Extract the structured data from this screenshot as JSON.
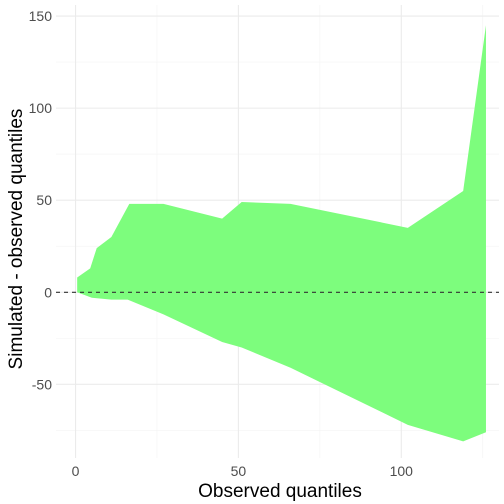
{
  "chart_data": {
    "type": "area",
    "title": "",
    "xlabel": "Observed quantiles",
    "ylabel": "Simulated - observed quantiles",
    "xlim": [
      -6,
      130
    ],
    "ylim": [
      -90,
      156
    ],
    "x_ticks": [
      0,
      50,
      100
    ],
    "x_tick_labels": [
      "0",
      "50",
      "100"
    ],
    "y_ticks": [
      -50,
      0,
      50,
      100,
      150
    ],
    "y_tick_labels": [
      "-50",
      "0",
      "50",
      "100",
      "150"
    ],
    "grid": true,
    "legend": "none",
    "band": {
      "upper": [
        [
          0.5,
          8
        ],
        [
          4.5,
          13
        ],
        [
          6.5,
          24
        ],
        [
          11,
          30
        ],
        [
          16.5,
          48
        ],
        [
          27,
          48
        ],
        [
          45,
          40
        ],
        [
          51,
          49
        ],
        [
          66,
          48
        ],
        [
          102,
          35
        ],
        [
          119,
          55
        ],
        [
          126,
          145
        ]
      ],
      "lower": [
        [
          0.5,
          0
        ],
        [
          5,
          -3
        ],
        [
          11,
          -4
        ],
        [
          16,
          -4
        ],
        [
          27,
          -12
        ],
        [
          45,
          -27
        ],
        [
          51,
          -30
        ],
        [
          66,
          -41
        ],
        [
          102,
          -72
        ],
        [
          119,
          -81
        ],
        [
          126,
          -76
        ]
      ]
    },
    "reference_line": {
      "y": 0,
      "style": "dashed"
    },
    "colors": {
      "band": "#7dfd7d",
      "reference_line": "#333333",
      "grid_major": "#ebebeb",
      "grid_minor": "#f5f5f5",
      "tick_text": "#4d4d4d"
    }
  }
}
